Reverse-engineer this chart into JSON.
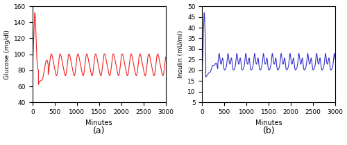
{
  "title_a": "(a)",
  "title_b": "(b)",
  "xlabel": "Minutes",
  "ylabel_a": "Glucose (mg/dl)",
  "ylabel_b": "Insulin (mU/ml)",
  "xlim": [
    0,
    3000
  ],
  "ylim_a": [
    40,
    160
  ],
  "ylim_b": [
    5,
    50
  ],
  "yticks_a": [
    40,
    60,
    80,
    100,
    120,
    140,
    160
  ],
  "yticks_b": [
    5,
    10,
    15,
    20,
    25,
    30,
    35,
    40,
    45,
    50
  ],
  "xticks": [
    0,
    500,
    1000,
    1500,
    2000,
    2500,
    3000
  ],
  "color_a": "#EE2222",
  "color_b": "#3333CC",
  "linewidth": 0.8,
  "figsize": [
    5.0,
    2.1
  ],
  "dpi": 100,
  "meal_period": 200,
  "t_max": 3000,
  "n_points": 9000,
  "G_init": 80.0,
  "G_spike": 152.0,
  "G_trough_init": 60.0,
  "G_peak_steady": 100.0,
  "G_trough_steady": 75.0,
  "G_base": 87.0,
  "G_amp": 13.0,
  "I_init": 20.0,
  "I_spike": 47.0,
  "I_trough_init": 17.0,
  "I_peak_steady": 29.0,
  "I_trough_steady": 19.5,
  "I_base": 24.0,
  "I_amp": 5.0,
  "transient_end": 350.0
}
